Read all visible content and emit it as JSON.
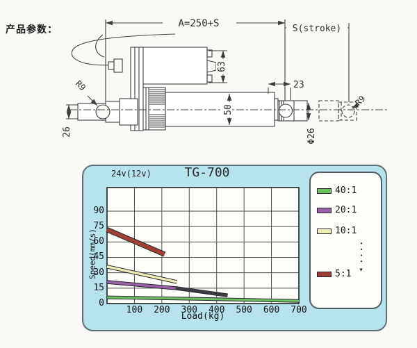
{
  "page": {
    "product_params_label": "产品参数："
  },
  "drawing": {
    "dim_a": "A=250+S",
    "dim_s": "S(stroke)",
    "dim_63": "63",
    "dim_50": "50",
    "dim_26": "26",
    "dim_23": "23",
    "dim_phi26": "Φ26",
    "r9_left": "R9",
    "r9_right": "R9"
  },
  "chart": {
    "voltage_label": "24v(12v)",
    "title": "TG-700",
    "legend": [
      {
        "label": "40:1",
        "color": "#6fc063"
      },
      {
        "label": "20:1",
        "color": "#9a62a6"
      },
      {
        "label": "10:1",
        "color": "#efedb8"
      },
      {
        "label": "5:1",
        "color": "#9e4036"
      }
    ],
    "legend_more": "····▾"
  },
  "chart_data": {
    "type": "line",
    "title": "TG-700",
    "xlabel": "Load(kg)",
    "ylabel": "Speed(mm/s)",
    "xlim": [
      0,
      700
    ],
    "ylim": [
      0,
      113
    ],
    "xticks": [
      100,
      200,
      300,
      400,
      500,
      600,
      700
    ],
    "yticks": [
      0,
      15,
      30,
      45,
      60,
      75,
      90
    ],
    "grid": true,
    "legend_position": "right",
    "series": [
      {
        "name": "5:1",
        "color": "#9e4036",
        "points": [
          [
            0,
            72
          ],
          [
            210,
            48
          ]
        ]
      },
      {
        "name": "10:1",
        "color": "#efedb8",
        "points": [
          [
            0,
            36
          ],
          [
            255,
            21
          ]
        ]
      },
      {
        "name": "20:1",
        "color": "#9a62a6",
        "points": [
          [
            0,
            21
          ],
          [
            250,
            15
          ],
          [
            440,
            8
          ]
        ],
        "tail_from": 1,
        "tail_color": "#3a3a40"
      },
      {
        "name": "40:1",
        "color": "#6fc063",
        "points": [
          [
            0,
            6
          ],
          [
            350,
            4.5
          ],
          [
            700,
            2.5
          ]
        ]
      }
    ]
  }
}
